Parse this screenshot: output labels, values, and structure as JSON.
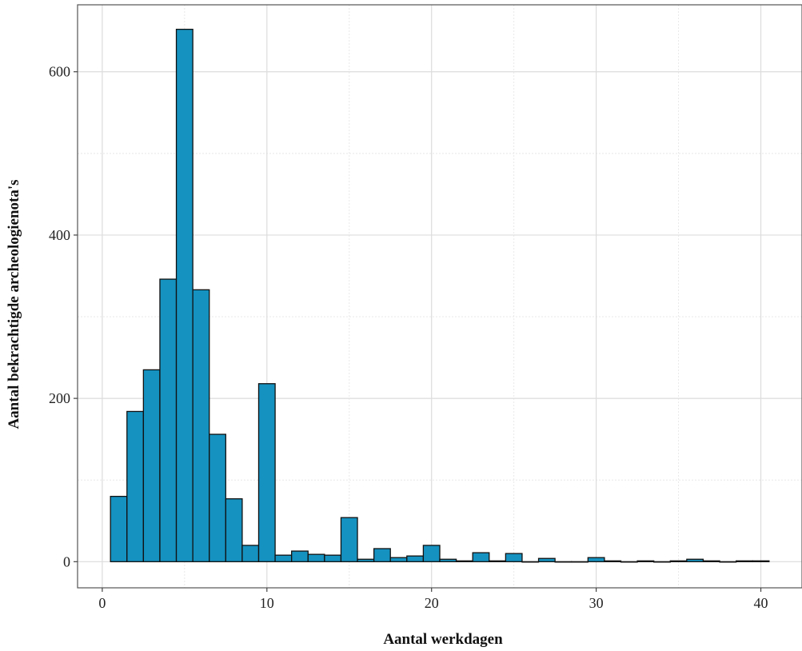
{
  "chart_data": {
    "type": "bar",
    "subtype": "histogram",
    "title": "",
    "xlabel": "Aantal werkdagen",
    "ylabel": "Aantal bekrachtigde archeologienota's",
    "xlim": [
      -1.5,
      42.5
    ],
    "ylim": [
      -32,
      682
    ],
    "x_ticks": [
      0,
      10,
      20,
      30,
      40
    ],
    "y_ticks": [
      0,
      200,
      400,
      600
    ],
    "bin_width": 1,
    "bins": [
      {
        "x": 1,
        "count": 80
      },
      {
        "x": 2,
        "count": 184
      },
      {
        "x": 3,
        "count": 235
      },
      {
        "x": 4,
        "count": 346
      },
      {
        "x": 5,
        "count": 652
      },
      {
        "x": 6,
        "count": 333
      },
      {
        "x": 7,
        "count": 156
      },
      {
        "x": 8,
        "count": 77
      },
      {
        "x": 9,
        "count": 20
      },
      {
        "x": 10,
        "count": 218
      },
      {
        "x": 11,
        "count": 8
      },
      {
        "x": 12,
        "count": 13
      },
      {
        "x": 13,
        "count": 9
      },
      {
        "x": 14,
        "count": 8
      },
      {
        "x": 15,
        "count": 54
      },
      {
        "x": 16,
        "count": 3
      },
      {
        "x": 17,
        "count": 16
      },
      {
        "x": 18,
        "count": 5
      },
      {
        "x": 19,
        "count": 7
      },
      {
        "x": 20,
        "count": 20
      },
      {
        "x": 21,
        "count": 3
      },
      {
        "x": 22,
        "count": 1
      },
      {
        "x": 23,
        "count": 11
      },
      {
        "x": 24,
        "count": 1
      },
      {
        "x": 25,
        "count": 10
      },
      {
        "x": 26,
        "count": 0
      },
      {
        "x": 27,
        "count": 4
      },
      {
        "x": 28,
        "count": 0
      },
      {
        "x": 29,
        "count": 0
      },
      {
        "x": 30,
        "count": 5
      },
      {
        "x": 31,
        "count": 1
      },
      {
        "x": 32,
        "count": 0
      },
      {
        "x": 33,
        "count": 1
      },
      {
        "x": 34,
        "count": 0
      },
      {
        "x": 35,
        "count": 1
      },
      {
        "x": 36,
        "count": 3
      },
      {
        "x": 37,
        "count": 1
      },
      {
        "x": 38,
        "count": 0
      },
      {
        "x": 39,
        "count": 1
      },
      {
        "x": 40,
        "count": 1
      }
    ],
    "grid": true,
    "legend": "none",
    "colors": {
      "bar_fill": "#1592C0",
      "bar_stroke": "#111111",
      "grid_major": "#DCDCDC",
      "grid_minor": "#E8E8E8",
      "panel_border": "#555555"
    }
  }
}
